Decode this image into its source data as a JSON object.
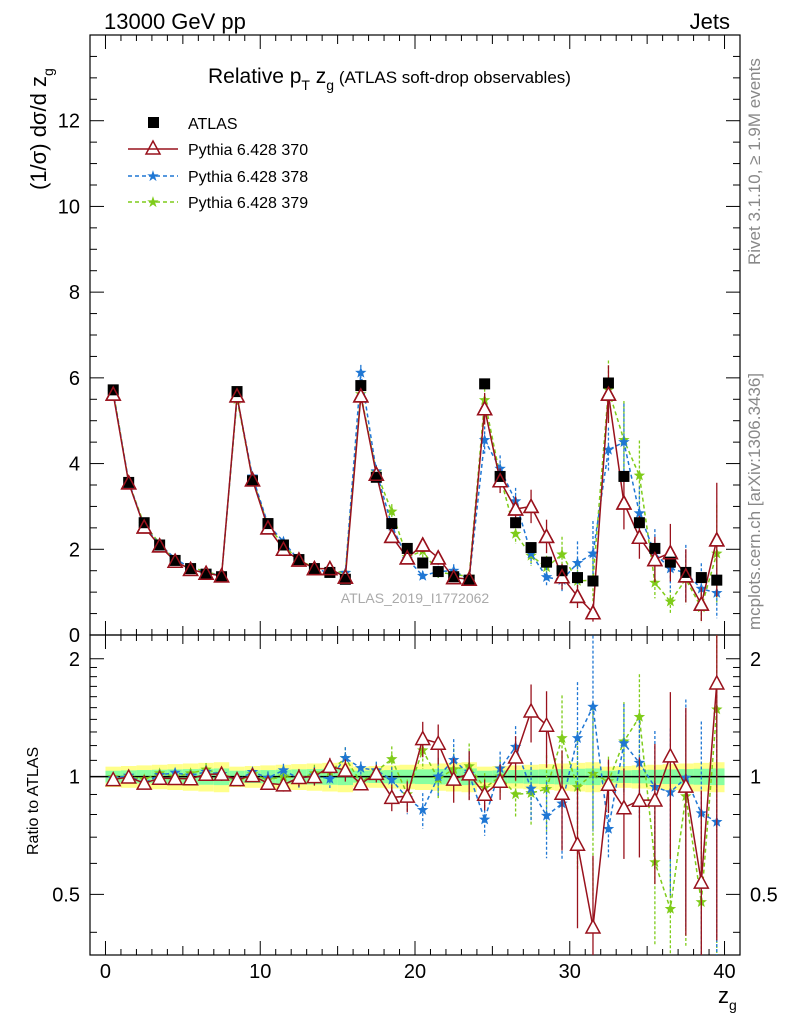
{
  "header": {
    "left": "13000 GeV pp",
    "right": "Jets"
  },
  "side_text": {
    "rivet": "Rivet 3.1.10, ≥ 1.9M events",
    "mcplots": "mcplots.cern.ch [arXiv:1306.3436]"
  },
  "chart_data": {
    "type": "scatter",
    "title_main": "Relative p",
    "title_sub_T": "T",
    "title_z": " z",
    "title_sub_g": "g",
    "title_rest": " (ATLAS soft-drop observables)",
    "watermark": "ATLAS_2019_I1772062",
    "ylabel_main": "(1/σ) dσ/d z",
    "ylabel_sub": "g",
    "xlabel_main": "z",
    "xlabel_sub": "g",
    "ratio_ylabel": "Ratio to ATLAS",
    "xlim": [
      -1,
      41
    ],
    "ylim": [
      0,
      14
    ],
    "ratio_ylim": [
      0.35,
      2.3
    ],
    "x_ticks": [
      "0",
      "10",
      "20",
      "30",
      "40"
    ],
    "y_ticks": [
      "0",
      "2",
      "4",
      "6",
      "8",
      "10",
      "12"
    ],
    "ratio_ticks": [
      "0.5",
      "1",
      "2"
    ],
    "x": [
      0.5,
      1.5,
      2.5,
      3.5,
      4.5,
      5.5,
      6.5,
      7.5,
      8.5,
      9.5,
      10.5,
      11.5,
      12.5,
      13.5,
      14.5,
      15.5,
      16.5,
      17.5,
      18.5,
      19.5,
      20.5,
      21.5,
      22.5,
      23.5,
      24.5,
      25.5,
      26.5,
      27.5,
      28.5,
      29.5,
      30.5,
      31.5,
      32.5,
      33.5,
      34.5,
      35.5,
      36.5,
      37.5,
      38.5,
      39.5
    ],
    "series": [
      {
        "name": "ATLAS",
        "color": "#000000",
        "marker": "square",
        "values": [
          5.72,
          3.56,
          2.62,
          2.1,
          1.74,
          1.55,
          1.42,
          1.36,
          5.68,
          3.6,
          2.6,
          2.1,
          1.76,
          1.55,
          1.46,
          1.3,
          5.82,
          3.68,
          2.6,
          2.02,
          1.68,
          1.48,
          1.36,
          1.28,
          5.86,
          3.7,
          2.62,
          2.04,
          1.7,
          1.5,
          1.34,
          1.26,
          5.88,
          3.7,
          2.62,
          2.02,
          1.7,
          1.46,
          1.34,
          1.28
        ]
      },
      {
        "name": "Pythia 6.428 370",
        "color": "#99121d",
        "marker": "triangle",
        "values": [
          5.62,
          3.55,
          2.52,
          2.08,
          1.72,
          1.53,
          1.44,
          1.38,
          5.58,
          3.62,
          2.5,
          2.0,
          1.75,
          1.55,
          1.55,
          1.35,
          5.58,
          3.75,
          2.3,
          1.8,
          2.1,
          1.8,
          1.34,
          1.3,
          5.28,
          3.6,
          2.94,
          3.0,
          2.3,
          1.36,
          0.9,
          0.52,
          5.62,
          3.08,
          2.28,
          1.76,
          1.92,
          1.38,
          0.72,
          2.22
        ],
        "ratio_errors": [
          0.02,
          0.02,
          0.02,
          0.02,
          0.02,
          0.02,
          0.03,
          0.03,
          0.02,
          0.02,
          0.03,
          0.03,
          0.04,
          0.04,
          0.04,
          0.05,
          0.03,
          0.04,
          0.06,
          0.07,
          0.08,
          0.09,
          0.1,
          0.11,
          0.07,
          0.08,
          0.1,
          0.13,
          0.17,
          0.22,
          0.3,
          0.4,
          0.12,
          0.2,
          0.22,
          0.3,
          0.35,
          0.45,
          0.55,
          0.6
        ]
      },
      {
        "name": "Pythia 6.428 378",
        "color": "#1f77d4",
        "marker": "star",
        "values": [
          5.66,
          3.58,
          2.52,
          2.12,
          1.78,
          1.56,
          1.46,
          1.38,
          5.55,
          3.7,
          2.58,
          2.18,
          1.74,
          1.56,
          1.44,
          1.45,
          6.12,
          3.82,
          2.55,
          1.78,
          1.38,
          1.48,
          1.5,
          1.3,
          4.55,
          3.88,
          3.12,
          1.9,
          1.35,
          1.28,
          1.68,
          1.9,
          4.32,
          4.5,
          2.84,
          1.9,
          1.55,
          1.45,
          1.08,
          0.98
        ],
        "ratio_errors": [
          0.02,
          0.02,
          0.02,
          0.02,
          0.02,
          0.02,
          0.03,
          0.03,
          0.02,
          0.02,
          0.03,
          0.03,
          0.04,
          0.04,
          0.04,
          0.05,
          0.03,
          0.04,
          0.06,
          0.07,
          0.08,
          0.09,
          0.1,
          0.11,
          0.07,
          0.08,
          0.1,
          0.13,
          0.17,
          0.22,
          0.3,
          0.4,
          0.12,
          0.2,
          0.22,
          0.3,
          0.35,
          0.45,
          0.55,
          0.6
        ]
      },
      {
        "name": "Pythia 6.428 379",
        "color": "#7fcc1a",
        "marker": "star",
        "values": [
          5.7,
          3.56,
          2.58,
          2.14,
          1.74,
          1.58,
          1.48,
          1.38,
          5.5,
          3.65,
          2.55,
          2.1,
          1.74,
          1.58,
          1.5,
          1.45,
          5.62,
          3.8,
          2.88,
          1.82,
          1.96,
          1.46,
          1.42,
          1.36,
          5.48,
          3.7,
          2.36,
          1.85,
          1.58,
          1.88,
          1.26,
          1.28,
          5.72,
          4.55,
          3.72,
          1.22,
          0.78,
          1.3,
          0.64,
          1.9
        ],
        "ratio_errors": [
          0.02,
          0.02,
          0.02,
          0.02,
          0.02,
          0.02,
          0.03,
          0.03,
          0.02,
          0.02,
          0.03,
          0.03,
          0.04,
          0.04,
          0.04,
          0.05,
          0.03,
          0.04,
          0.06,
          0.07,
          0.08,
          0.09,
          0.1,
          0.11,
          0.07,
          0.08,
          0.1,
          0.13,
          0.17,
          0.22,
          0.3,
          0.4,
          0.12,
          0.2,
          0.22,
          0.3,
          0.35,
          0.45,
          0.55,
          0.6
        ]
      }
    ]
  }
}
